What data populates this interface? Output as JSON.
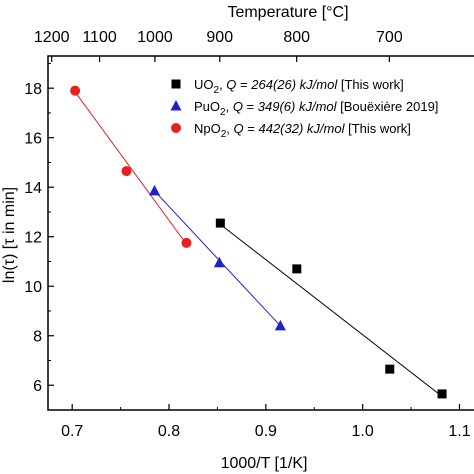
{
  "chart_data": {
    "type": "scatter",
    "title": "",
    "xlabel": "1000/T [1/K]",
    "ylabel": "ln(τ) [τ in min]",
    "top_axis_label": "Temperature [°C]",
    "xlim": [
      0.675,
      1.115
    ],
    "ylim": [
      5.0,
      19.3
    ],
    "x_ticks": [
      0.7,
      0.8,
      0.9,
      1.0,
      1.1
    ],
    "x_tick_labels": [
      "0.7",
      "0.8",
      "0.9",
      "1.0",
      "1.1"
    ],
    "y_ticks": [
      6,
      8,
      10,
      12,
      14,
      16,
      18
    ],
    "y_tick_labels": [
      "6",
      "8",
      "10",
      "12",
      "14",
      "16",
      "18"
    ],
    "top_ticks_celsius": [
      1200,
      1100,
      1000,
      900,
      800,
      700
    ],
    "top_tick_labels": [
      "1200",
      "1100",
      "1000",
      "900",
      "800",
      "700"
    ],
    "legend_position": "top-right",
    "series": [
      {
        "name": "UO2, Q = 264(26) kJ/mol [This work]",
        "legend": {
          "compound": "UO",
          "sub": "2",
          "q_value": "264(26) kJ/mol",
          "ref": "[This work]"
        },
        "color": "#000000",
        "marker": "square",
        "x": [
          0.853,
          0.932,
          1.028,
          1.082
        ],
        "y": [
          12.55,
          10.7,
          6.65,
          5.65
        ],
        "fit": {
          "x": [
            0.853,
            1.082
          ],
          "y": [
            12.5,
            5.55
          ]
        }
      },
      {
        "name": "PuO2, Q = 349(6) kJ/mol [Bouëxière 2019]",
        "legend": {
          "compound": "PuO",
          "sub": "2",
          "q_value": "349(6) kJ/mol",
          "ref": "[Bouëxière 2019]"
        },
        "color": "#1f1fd0",
        "marker": "triangle",
        "x": [
          0.785,
          0.852,
          0.915
        ],
        "y": [
          13.85,
          10.95,
          8.4
        ],
        "fit": {
          "x": [
            0.785,
            0.915
          ],
          "y": [
            13.85,
            8.4
          ]
        }
      },
      {
        "name": "NpO2, Q = 442(32) kJ/mol [This work]",
        "legend": {
          "compound": "NpO",
          "sub": "2",
          "q_value": "442(32) kJ/mol",
          "ref": "[This work]"
        },
        "color": "#e82020",
        "marker": "circle",
        "x": [
          0.703,
          0.756,
          0.818
        ],
        "y": [
          17.9,
          14.65,
          11.75
        ],
        "fit": {
          "x": [
            0.703,
            0.818
          ],
          "y": [
            17.85,
            11.7
          ]
        }
      }
    ]
  }
}
